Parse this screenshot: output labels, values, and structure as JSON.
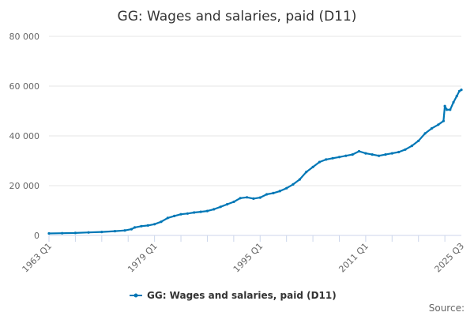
{
  "chart_data": {
    "type": "line",
    "title": "GG: Wages and salaries, paid (D11)",
    "source_label": "Source:",
    "series_color": "#0077b6",
    "ylim": [
      0,
      80000
    ],
    "y_ticks": [
      {
        "value": 0,
        "label": "0"
      },
      {
        "value": 20000,
        "label": "20 000"
      },
      {
        "value": 40000,
        "label": "40 000"
      },
      {
        "value": 60000,
        "label": "60 000"
      },
      {
        "value": 80000,
        "label": "80 000"
      }
    ],
    "x_ticks": [
      {
        "value": 1963.0,
        "label": "1963 Q1"
      },
      {
        "value": 1979.0,
        "label": "1979 Q1"
      },
      {
        "value": 1995.0,
        "label": "1995 Q1"
      },
      {
        "value": 2011.0,
        "label": "2011 Q1"
      },
      {
        "value": 2025.5,
        "label": "2025 Q3"
      }
    ],
    "xlim": [
      1963.0,
      2025.5
    ],
    "grid": "horizontal",
    "legend_position": "bottom",
    "series": [
      {
        "name": "GG: Wages and salaries, paid (D11)",
        "points": [
          [
            1963.0,
            800
          ],
          [
            1965.0,
            900
          ],
          [
            1967.0,
            1000
          ],
          [
            1969.0,
            1200
          ],
          [
            1971.0,
            1400
          ],
          [
            1973.0,
            1700
          ],
          [
            1974.5,
            2000
          ],
          [
            1975.5,
            2500
          ],
          [
            1976.0,
            3200
          ],
          [
            1977.0,
            3700
          ],
          [
            1978.0,
            4000
          ],
          [
            1979.0,
            4500
          ],
          [
            1980.0,
            5500
          ],
          [
            1981.0,
            7000
          ],
          [
            1982.0,
            7800
          ],
          [
            1983.0,
            8500
          ],
          [
            1984.0,
            8800
          ],
          [
            1985.0,
            9200
          ],
          [
            1986.0,
            9500
          ],
          [
            1987.0,
            9800
          ],
          [
            1988.0,
            10500
          ],
          [
            1989.0,
            11500
          ],
          [
            1990.0,
            12500
          ],
          [
            1991.0,
            13500
          ],
          [
            1992.0,
            15000
          ],
          [
            1993.0,
            15300
          ],
          [
            1994.0,
            14800
          ],
          [
            1995.0,
            15200
          ],
          [
            1996.0,
            16500
          ],
          [
            1997.0,
            17000
          ],
          [
            1998.0,
            17800
          ],
          [
            1999.0,
            19000
          ],
          [
            2000.0,
            20500
          ],
          [
            2001.0,
            22500
          ],
          [
            2002.0,
            25500
          ],
          [
            2003.0,
            27500
          ],
          [
            2004.0,
            29500
          ],
          [
            2005.0,
            30500
          ],
          [
            2006.0,
            31000
          ],
          [
            2007.0,
            31500
          ],
          [
            2008.0,
            32000
          ],
          [
            2009.0,
            32500
          ],
          [
            2010.0,
            33800
          ],
          [
            2011.0,
            33000
          ],
          [
            2012.0,
            32500
          ],
          [
            2013.0,
            32000
          ],
          [
            2014.0,
            32500
          ],
          [
            2015.0,
            33000
          ],
          [
            2016.0,
            33500
          ],
          [
            2017.0,
            34500
          ],
          [
            2018.0,
            36000
          ],
          [
            2019.0,
            38000
          ],
          [
            2020.0,
            41000
          ],
          [
            2021.0,
            43000
          ],
          [
            2022.0,
            44500
          ],
          [
            2022.8,
            46000
          ],
          [
            2023.0,
            52000
          ],
          [
            2023.3,
            50500
          ],
          [
            2023.8,
            50500
          ],
          [
            2024.3,
            53500
          ],
          [
            2024.8,
            56000
          ],
          [
            2025.2,
            58000
          ],
          [
            2025.5,
            58500
          ]
        ]
      }
    ]
  }
}
